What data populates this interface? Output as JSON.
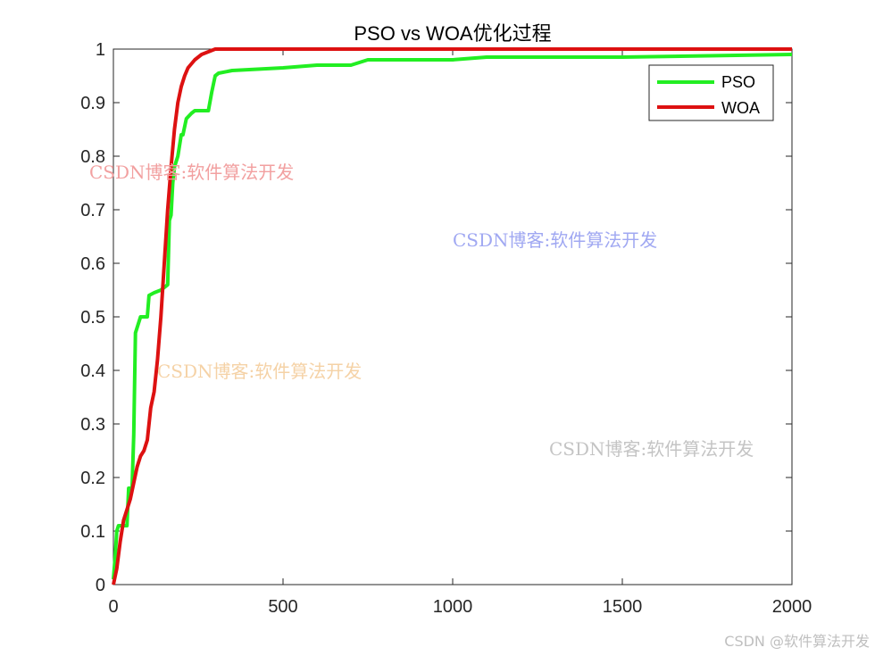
{
  "chart_data": {
    "type": "line",
    "title": "PSO vs WOA优化过程",
    "xlabel": "",
    "ylabel": "",
    "xlim": [
      0,
      2000
    ],
    "ylim": [
      0,
      1
    ],
    "xticks": [
      0,
      500,
      1000,
      1500,
      2000
    ],
    "xtick_labels": [
      "0",
      "500",
      "1000",
      "1500",
      "2000"
    ],
    "yticks": [
      0,
      0.1,
      0.2,
      0.3,
      0.4,
      0.5,
      0.6,
      0.7,
      0.8,
      0.9,
      1
    ],
    "ytick_labels": [
      "0",
      "0.1",
      "0.2",
      "0.3",
      "0.4",
      "0.5",
      "0.6",
      "0.7",
      "0.8",
      "0.9",
      "1"
    ],
    "grid": false,
    "legend_position": "top-right",
    "series": [
      {
        "name": "PSO",
        "color": "#22ee22",
        "x": [
          0,
          5,
          10,
          15,
          20,
          40,
          45,
          55,
          60,
          65,
          70,
          80,
          85,
          100,
          105,
          120,
          140,
          160,
          165,
          170,
          175,
          180,
          185,
          190,
          200,
          205,
          215,
          230,
          240,
          280,
          290,
          300,
          310,
          350,
          500,
          600,
          700,
          750,
          1000,
          1100,
          1500,
          2000
        ],
        "y": [
          0.01,
          0.05,
          0.1,
          0.11,
          0.11,
          0.11,
          0.18,
          0.18,
          0.28,
          0.47,
          0.48,
          0.5,
          0.5,
          0.5,
          0.54,
          0.545,
          0.55,
          0.56,
          0.68,
          0.69,
          0.75,
          0.78,
          0.79,
          0.8,
          0.84,
          0.84,
          0.87,
          0.88,
          0.885,
          0.885,
          0.92,
          0.95,
          0.955,
          0.96,
          0.965,
          0.97,
          0.97,
          0.98,
          0.98,
          0.985,
          0.985,
          0.99
        ]
      },
      {
        "name": "WOA",
        "color": "#dd1111",
        "x": [
          0,
          10,
          20,
          30,
          40,
          50,
          60,
          70,
          80,
          90,
          100,
          110,
          120,
          130,
          140,
          150,
          160,
          170,
          180,
          190,
          200,
          210,
          220,
          240,
          260,
          280,
          300,
          400,
          600,
          900,
          1000,
          1500,
          2000
        ],
        "y": [
          0.0,
          0.03,
          0.08,
          0.12,
          0.14,
          0.16,
          0.19,
          0.22,
          0.24,
          0.25,
          0.27,
          0.33,
          0.36,
          0.42,
          0.5,
          0.6,
          0.7,
          0.78,
          0.85,
          0.9,
          0.93,
          0.95,
          0.965,
          0.98,
          0.99,
          0.995,
          1.0,
          1.0,
          1.0,
          1.0,
          1.0,
          1.0,
          1.0
        ]
      }
    ]
  },
  "watermarks": [
    {
      "text": "CSDN博客:软件算法开发",
      "color": "#f2a0a0"
    },
    {
      "text": "CSDN博客:软件算法开发",
      "color": "#a0a8f2"
    },
    {
      "text": "CSDN博客:软件算法开发",
      "color": "#f5d2a6"
    },
    {
      "text": "CSDN博客:软件算法开发",
      "color": "#c4c4c4"
    }
  ],
  "footer": "CSDN @软件算法开发"
}
